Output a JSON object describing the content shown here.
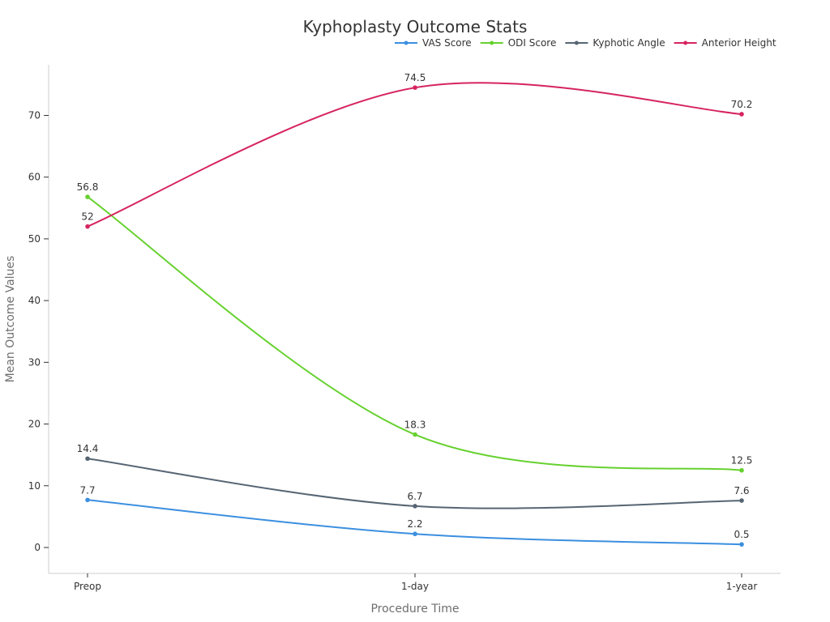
{
  "chart_data": {
    "type": "line",
    "title": "Kyphoplasty Outcome Stats",
    "xlabel": "Procedure Time",
    "ylabel": "Mean Outcome Values",
    "categories": [
      "Preop",
      "1-day",
      "1-year"
    ],
    "ylim": [
      -4.2,
      78.2
    ],
    "yticks": [
      0,
      10,
      20,
      30,
      40,
      50,
      60,
      70
    ],
    "legend_position": "top-right",
    "series": [
      {
        "name": "VAS Score",
        "color": "#3b8fe0",
        "values": [
          7.7,
          2.2,
          0.5
        ]
      },
      {
        "name": "ODI Score",
        "color": "#66d12e",
        "values": [
          56.8,
          18.3,
          12.5
        ]
      },
      {
        "name": "Kyphotic Angle",
        "color": "#566573",
        "values": [
          14.4,
          6.7,
          7.6
        ]
      },
      {
        "name": "Anterior Height",
        "color": "#d6245f",
        "values": [
          52,
          74.5,
          70.2
        ]
      }
    ]
  }
}
